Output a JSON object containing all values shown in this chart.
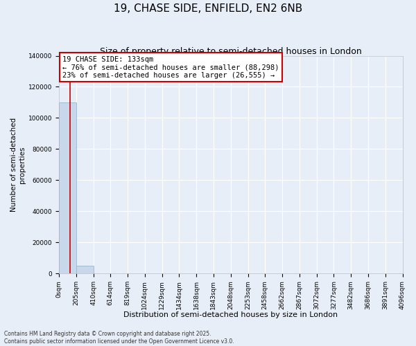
{
  "title": "19, CHASE SIDE, ENFIELD, EN2 6NB",
  "subtitle": "Size of property relative to semi-detached houses in London",
  "xlabel": "Distribution of semi-detached houses by size in London",
  "ylabel": "Number of semi-detached\nproperties",
  "bar_color": "#c8d8ea",
  "bar_edge_color": "#9ab8cc",
  "vline_color": "#cc0000",
  "vline_x": 133,
  "annotation_line1": "19 CHASE SIDE: 133sqm",
  "annotation_line2": "← 76% of semi-detached houses are smaller (88,298)",
  "annotation_line3": "23% of semi-detached houses are larger (26,555) →",
  "annotation_box_color": "#cc0000",
  "background_color": "#e8eef8",
  "grid_color": "#ffffff",
  "bin_edges": [
    0,
    205,
    410,
    614,
    819,
    1024,
    1229,
    1434,
    1638,
    1843,
    2048,
    2253,
    2458,
    2662,
    2867,
    3072,
    3277,
    3482,
    3686,
    3891,
    4096
  ],
  "bin_counts": [
    110000,
    5000,
    200,
    50,
    20,
    10,
    5,
    3,
    2,
    2,
    1,
    1,
    1,
    1,
    1,
    0,
    0,
    0,
    0,
    0
  ],
  "ylim": [
    0,
    140000
  ],
  "yticks": [
    0,
    20000,
    40000,
    60000,
    80000,
    100000,
    120000,
    140000
  ],
  "footnote": "Contains HM Land Registry data © Crown copyright and database right 2025.\nContains public sector information licensed under the Open Government Licence v3.0.",
  "title_fontsize": 11,
  "subtitle_fontsize": 9,
  "tick_fontsize": 6.5,
  "ylabel_fontsize": 7.5,
  "xlabel_fontsize": 8
}
